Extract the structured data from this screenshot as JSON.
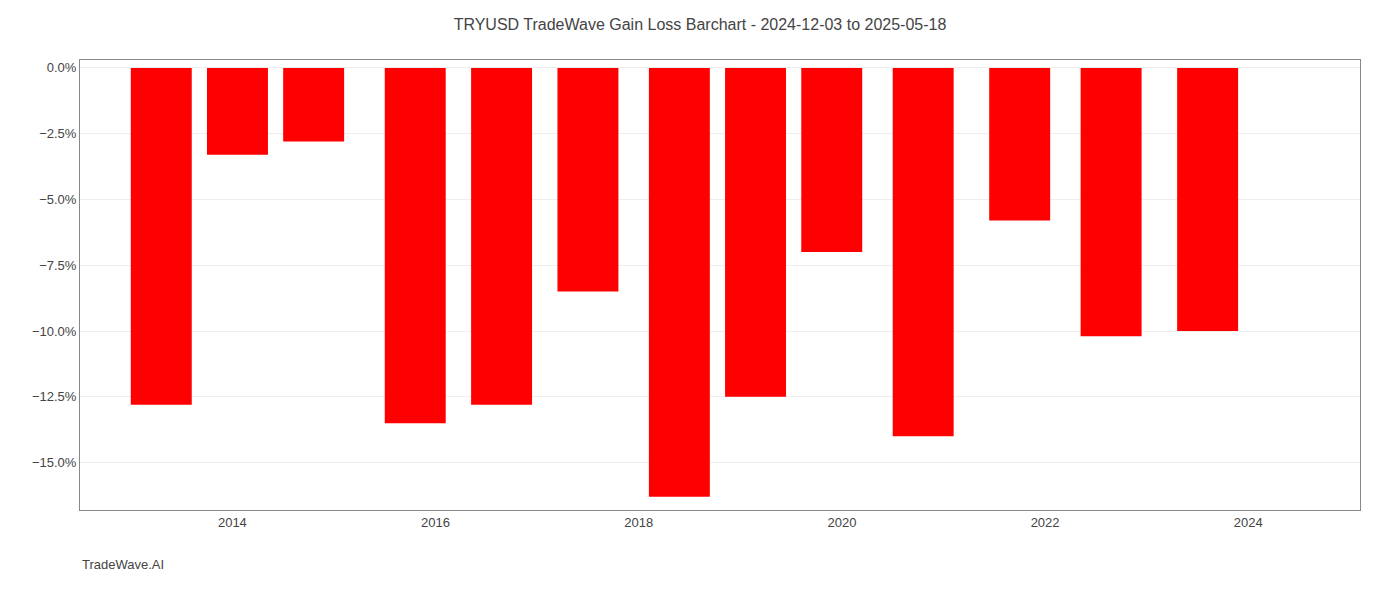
{
  "chart_data": {
    "type": "bar",
    "title": "TRYUSD TradeWave Gain Loss Barchart - 2024-12-03 to 2025-05-18",
    "annotations": [
      {
        "text": "TradeWave.AI"
      }
    ],
    "x": [
      2013.3,
      2014.05,
      2014.8,
      2015.8,
      2016.65,
      2017.5,
      2018.4,
      2019.15,
      2019.9,
      2020.8,
      2021.75,
      2022.65,
      2023.6
    ],
    "values": [
      -0.128,
      -0.033,
      -0.028,
      -0.135,
      -0.128,
      -0.085,
      -0.163,
      -0.125,
      -0.07,
      -0.14,
      -0.058,
      -0.102,
      -0.1
    ],
    "color": "#ff0000",
    "xlim": [
      2012.5,
      2025.1
    ],
    "xticks": [
      2014,
      2016,
      2018,
      2020,
      2022,
      2024
    ],
    "ylim": [
      -0.168,
      0.003
    ],
    "yticks": [
      {
        "value": 0.0,
        "label": "0.0%"
      },
      {
        "value": -0.025,
        "label": "−2.5%"
      },
      {
        "value": -0.05,
        "label": "−5.0%"
      },
      {
        "value": -0.075,
        "label": "−7.5%"
      },
      {
        "value": -0.1,
        "label": "−10.0%"
      },
      {
        "value": -0.125,
        "label": "−12.5%"
      },
      {
        "value": -0.15,
        "label": "−15.0%"
      }
    ],
    "grid": true
  }
}
